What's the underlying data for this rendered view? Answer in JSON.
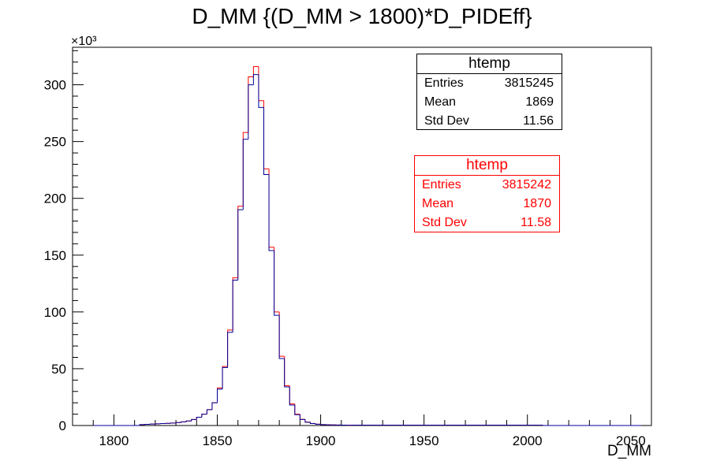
{
  "chart_data": {
    "type": "histogram",
    "title": "D_MM {(D_MM > 1800)*D_PIDEff}",
    "xlabel": "D_MM",
    "ylabel": "",
    "y_multiplier": "×10³",
    "xlim": [
      1780,
      2060
    ],
    "ylim": [
      0,
      333
    ],
    "x_ticks": [
      1800,
      1850,
      1900,
      1950,
      2000,
      2050
    ],
    "y_ticks": [
      0,
      50,
      100,
      150,
      200,
      250,
      300
    ],
    "grid": false,
    "bin_edges_start": 1790,
    "bin_width": 2.5,
    "series": [
      {
        "color": "#ff0000",
        "values": [
          0,
          0,
          0,
          0,
          0,
          0,
          0,
          0,
          0,
          0.8,
          1,
          1.3,
          1.5,
          1.7,
          1.9,
          2.2,
          2.6,
          3.2,
          4,
          5.3,
          7.3,
          10,
          14,
          20,
          33,
          52,
          84,
          130,
          193,
          258,
          307,
          316,
          286,
          226,
          157,
          100,
          61,
          35,
          19,
          10,
          5.5,
          3,
          1.8,
          1.2,
          0.8,
          0.6,
          0.5,
          0.4,
          0.35,
          0.3,
          0.3,
          0.3,
          0.3,
          0.3,
          0.3,
          0.3,
          0.3,
          0.3,
          0.3,
          0.3,
          0.3,
          0.3,
          0.3,
          0.3,
          0.3,
          0.3,
          0.3,
          0.3,
          0.3,
          0.3,
          0.3,
          0.3,
          0.3,
          0.3,
          0.3,
          0.3,
          0.3,
          0.3,
          0.3,
          0.3,
          0.3,
          0.3,
          0.3,
          0.3,
          0.3,
          0.3,
          0.3,
          0,
          0,
          0,
          0,
          0,
          0,
          0,
          0,
          0,
          0,
          0,
          0,
          0,
          0,
          0,
          0,
          0,
          0,
          0
        ]
      },
      {
        "color": "#000099",
        "values": [
          0,
          0,
          0,
          0,
          0,
          0,
          0,
          0,
          0,
          0.8,
          1,
          1.3,
          1.5,
          1.7,
          1.9,
          2.2,
          2.6,
          3.2,
          4,
          5.3,
          7.3,
          10,
          14,
          20,
          32,
          51,
          82,
          128,
          190,
          252,
          300,
          309,
          280,
          221,
          154,
          97,
          59,
          34,
          18,
          9.5,
          5.3,
          2.9,
          1.7,
          1.1,
          0.8,
          0.6,
          0.5,
          0.4,
          0.35,
          0.3,
          0.3,
          0.3,
          0.3,
          0.3,
          0.3,
          0.3,
          0.3,
          0.3,
          0.3,
          0.3,
          0.3,
          0.3,
          0.3,
          0.3,
          0.3,
          0.3,
          0.3,
          0.3,
          0.3,
          0.3,
          0.3,
          0.3,
          0.3,
          0.3,
          0.3,
          0.3,
          0.3,
          0.3,
          0.3,
          0.3,
          0.3,
          0.3,
          0.3,
          0.3,
          0.3,
          0.3,
          0.3,
          0,
          0,
          0,
          0,
          0,
          0,
          0,
          0,
          0,
          0,
          0,
          0,
          0,
          0,
          0,
          0,
          0,
          0,
          0
        ]
      }
    ]
  },
  "stats_black": {
    "title": "htemp",
    "entries_label": "Entries",
    "entries_value": "3815245",
    "mean_label": "Mean",
    "mean_value": "1869",
    "stddev_label": "Std Dev",
    "stddev_value": "11.56"
  },
  "stats_red": {
    "title": "htemp",
    "entries_label": "Entries",
    "entries_value": "3815242",
    "mean_label": "Mean",
    "mean_value": "1870",
    "stddev_label": "Std Dev",
    "stddev_value": "11.58"
  }
}
